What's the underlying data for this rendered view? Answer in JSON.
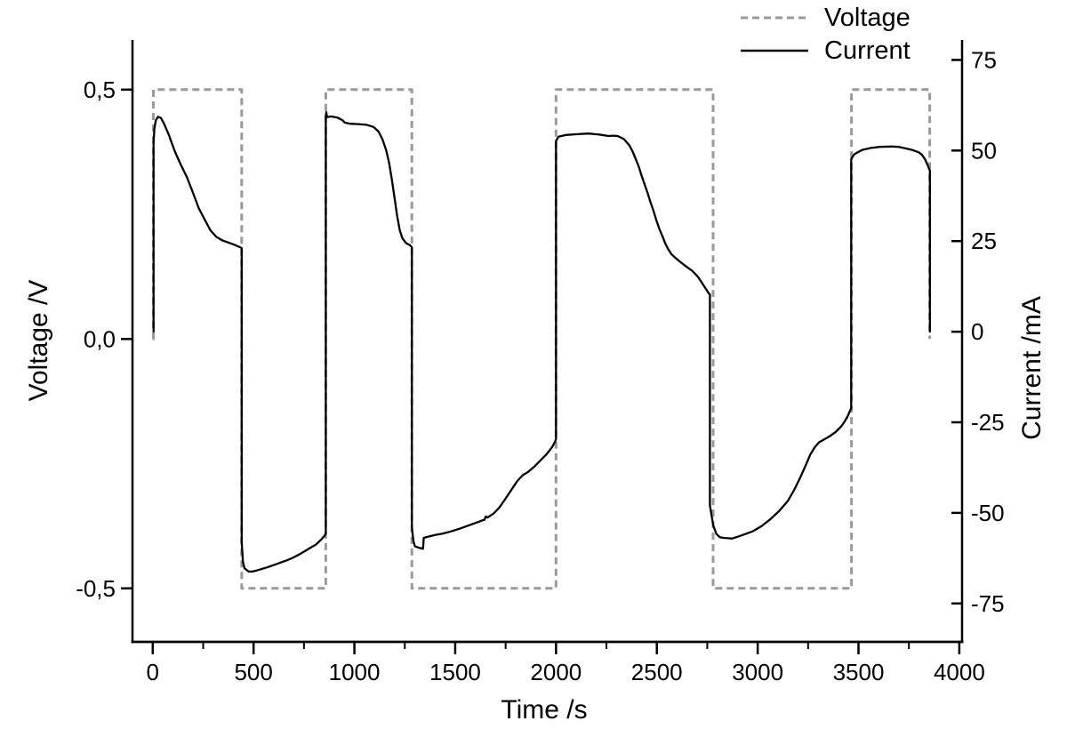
{
  "chart_data": {
    "type": "line",
    "title": "",
    "xlabel": "Time /s",
    "ylabel_left": "Voltage /V",
    "ylabel_right": "Current /mA",
    "background": "#ffffff",
    "axis_color": "#000000",
    "legend": [
      {
        "label": "Voltage",
        "style": "dashed",
        "color": "#9a9a9a"
      },
      {
        "label": "Current",
        "style": "solid",
        "color": "#000000"
      }
    ],
    "axes": {
      "x": {
        "min": -100.5,
        "max": 4013.7,
        "major_ticks": [
          0,
          500,
          1000,
          1500,
          2000,
          2500,
          3000,
          3500,
          4000
        ],
        "tick_labels": [
          "0",
          "500",
          "1000",
          "1500",
          "2000",
          "2500",
          "3000",
          "3500",
          "4000"
        ],
        "minor_ticks": [
          250,
          750,
          1250,
          1750,
          2250,
          2750,
          3250,
          3750
        ]
      },
      "y_left": {
        "min": -0.6073,
        "max": 0.5995,
        "major_ticks": [
          0.5,
          0.0,
          -0.5
        ],
        "tick_labels": [
          "0,5",
          "0,0",
          "-0,5"
        ]
      },
      "y_right": {
        "min": -85.6,
        "max": 80.5,
        "major_ticks": [
          75,
          50,
          25,
          0,
          -25,
          -50,
          -75
        ],
        "tick_labels": [
          "75",
          "50",
          "25",
          "0",
          "-25",
          "-50",
          "-75"
        ]
      }
    },
    "series": [
      {
        "name": "Voltage",
        "axis": "y_left",
        "color": "#9a9a9a",
        "style": "dashed",
        "width": 3,
        "points": [
          [
            0,
            0
          ],
          [
            3,
            0
          ],
          [
            3,
            0.5
          ],
          [
            441,
            0.5
          ],
          [
            441,
            -0.5
          ],
          [
            858,
            -0.5
          ],
          [
            858,
            0.5
          ],
          [
            1285,
            0.5
          ],
          [
            1285,
            -0.5
          ],
          [
            2000,
            -0.5
          ],
          [
            2000,
            0.5
          ],
          [
            2779,
            0.5
          ],
          [
            2779,
            -0.5
          ],
          [
            3465,
            -0.5
          ],
          [
            3465,
            0.5
          ],
          [
            3853,
            0.5
          ],
          [
            3853,
            0
          ]
        ]
      },
      {
        "name": "Current",
        "axis": "y_right",
        "color": "#000000",
        "style": "solid",
        "width": 2.3,
        "points": [
          [
            0,
            0
          ],
          [
            4,
            0
          ],
          [
            4,
            52
          ],
          [
            8,
            56
          ],
          [
            15,
            58.3
          ],
          [
            26,
            59.3
          ],
          [
            40,
            59
          ],
          [
            55,
            57.5
          ],
          [
            80,
            54.3
          ],
          [
            110,
            49.7
          ],
          [
            140,
            46
          ],
          [
            170,
            42.6
          ],
          [
            200,
            38.3
          ],
          [
            228,
            34.1
          ],
          [
            258,
            30.9
          ],
          [
            287,
            27.9
          ],
          [
            315,
            26.2
          ],
          [
            345,
            25.2
          ],
          [
            375,
            24.6
          ],
          [
            405,
            24
          ],
          [
            441,
            23.1
          ],
          [
            441,
            -58
          ],
          [
            447,
            -63.5
          ],
          [
            455,
            -65.3
          ],
          [
            476,
            -66.2
          ],
          [
            495,
            -66.2
          ],
          [
            515,
            -65.9
          ],
          [
            545,
            -65.4
          ],
          [
            575,
            -64.9
          ],
          [
            605,
            -64.3
          ],
          [
            635,
            -63.7
          ],
          [
            665,
            -63.1
          ],
          [
            695,
            -62.4
          ],
          [
            725,
            -61.5
          ],
          [
            750,
            -60.7
          ],
          [
            780,
            -59.7
          ],
          [
            808,
            -58.8
          ],
          [
            835,
            -57.4
          ],
          [
            853,
            -56.2
          ],
          [
            858,
            -55.7
          ],
          [
            858,
            59.5
          ],
          [
            861,
            60.6
          ],
          [
            864,
            59.2
          ],
          [
            885,
            59.4
          ],
          [
            915,
            59.1
          ],
          [
            940,
            58.4
          ],
          [
            952,
            57.7
          ],
          [
            980,
            57.4
          ],
          [
            1020,
            57.3
          ],
          [
            1060,
            57.1
          ],
          [
            1095,
            56.5
          ],
          [
            1120,
            55.2
          ],
          [
            1140,
            53
          ],
          [
            1158,
            50
          ],
          [
            1172,
            46.6
          ],
          [
            1186,
            42
          ],
          [
            1199,
            37
          ],
          [
            1212,
            32
          ],
          [
            1225,
            28
          ],
          [
            1238,
            25.8
          ],
          [
            1255,
            24.5
          ],
          [
            1275,
            23.9
          ],
          [
            1285,
            23.3
          ],
          [
            1285,
            -54
          ],
          [
            1293,
            -57.8
          ],
          [
            1300,
            -59.2
          ],
          [
            1318,
            -59.6
          ],
          [
            1340,
            -59.9
          ],
          [
            1344,
            -56.9
          ],
          [
            1365,
            -56.6
          ],
          [
            1400,
            -56.1
          ],
          [
            1440,
            -55.7
          ],
          [
            1480,
            -55.1
          ],
          [
            1520,
            -54.4
          ],
          [
            1560,
            -53.6
          ],
          [
            1600,
            -52.8
          ],
          [
            1628,
            -52.2
          ],
          [
            1645,
            -51.9
          ],
          [
            1652,
            -51
          ],
          [
            1660,
            -51.3
          ],
          [
            1690,
            -50.2
          ],
          [
            1718,
            -48.6
          ],
          [
            1748,
            -46.2
          ],
          [
            1778,
            -43.7
          ],
          [
            1808,
            -41.2
          ],
          [
            1835,
            -39.6
          ],
          [
            1862,
            -38.7
          ],
          [
            1893,
            -37.2
          ],
          [
            1923,
            -35.5
          ],
          [
            1953,
            -33.8
          ],
          [
            1980,
            -31.9
          ],
          [
            1996,
            -30.3
          ],
          [
            2000,
            -29.6
          ],
          [
            2000,
            52.6
          ],
          [
            2012,
            53.8
          ],
          [
            2050,
            54.3
          ],
          [
            2100,
            54.5
          ],
          [
            2160,
            54.7
          ],
          [
            2215,
            54.4
          ],
          [
            2260,
            54
          ],
          [
            2285,
            54.1
          ],
          [
            2306,
            54
          ],
          [
            2336,
            53.2
          ],
          [
            2364,
            51.4
          ],
          [
            2380,
            49.7
          ],
          [
            2395,
            47.7
          ],
          [
            2410,
            45.6
          ],
          [
            2424,
            43.1
          ],
          [
            2439,
            40.7
          ],
          [
            2454,
            38.3
          ],
          [
            2468,
            35.8
          ],
          [
            2483,
            33.4
          ],
          [
            2497,
            30.9
          ],
          [
            2512,
            28.4
          ],
          [
            2527,
            26.4
          ],
          [
            2542,
            24.3
          ],
          [
            2557,
            22.7
          ],
          [
            2572,
            21.4
          ],
          [
            2587,
            20.6
          ],
          [
            2615,
            19.3
          ],
          [
            2645,
            18
          ],
          [
            2675,
            16.8
          ],
          [
            2703,
            15.2
          ],
          [
            2719,
            13.9
          ],
          [
            2734,
            12.6
          ],
          [
            2748,
            11.4
          ],
          [
            2757,
            10.6
          ],
          [
            2763,
            10.3
          ],
          [
            2763,
            -48
          ],
          [
            2780,
            -53.5
          ],
          [
            2795,
            -55.8
          ],
          [
            2812,
            -56.7
          ],
          [
            2830,
            -56.9
          ],
          [
            2852,
            -57
          ],
          [
            2872,
            -57.1
          ],
          [
            2900,
            -56.6
          ],
          [
            2930,
            -56
          ],
          [
            2975,
            -55.1
          ],
          [
            3018,
            -53.7
          ],
          [
            3062,
            -51.8
          ],
          [
            3106,
            -49.5
          ],
          [
            3150,
            -46.7
          ],
          [
            3180,
            -43.8
          ],
          [
            3210,
            -40.4
          ],
          [
            3238,
            -36.9
          ],
          [
            3261,
            -33.9
          ],
          [
            3283,
            -31.9
          ],
          [
            3305,
            -30.5
          ],
          [
            3327,
            -29.8
          ],
          [
            3356,
            -28.9
          ],
          [
            3386,
            -27.7
          ],
          [
            3415,
            -26.1
          ],
          [
            3430,
            -24.9
          ],
          [
            3445,
            -23.5
          ],
          [
            3458,
            -21.8
          ],
          [
            3464,
            -21.1
          ],
          [
            3464,
            47.6
          ],
          [
            3478,
            48.9
          ],
          [
            3492,
            49.4
          ],
          [
            3520,
            50.2
          ],
          [
            3560,
            50.7
          ],
          [
            3605,
            51
          ],
          [
            3665,
            51.1
          ],
          [
            3700,
            51
          ],
          [
            3740,
            50.5
          ],
          [
            3770,
            50.1
          ],
          [
            3800,
            49.5
          ],
          [
            3815,
            48.8
          ],
          [
            3830,
            47.6
          ],
          [
            3843,
            46
          ],
          [
            3851,
            44.8
          ],
          [
            3854,
            44.5
          ],
          [
            3854,
            0
          ],
          [
            3858,
            0
          ]
        ]
      }
    ]
  }
}
